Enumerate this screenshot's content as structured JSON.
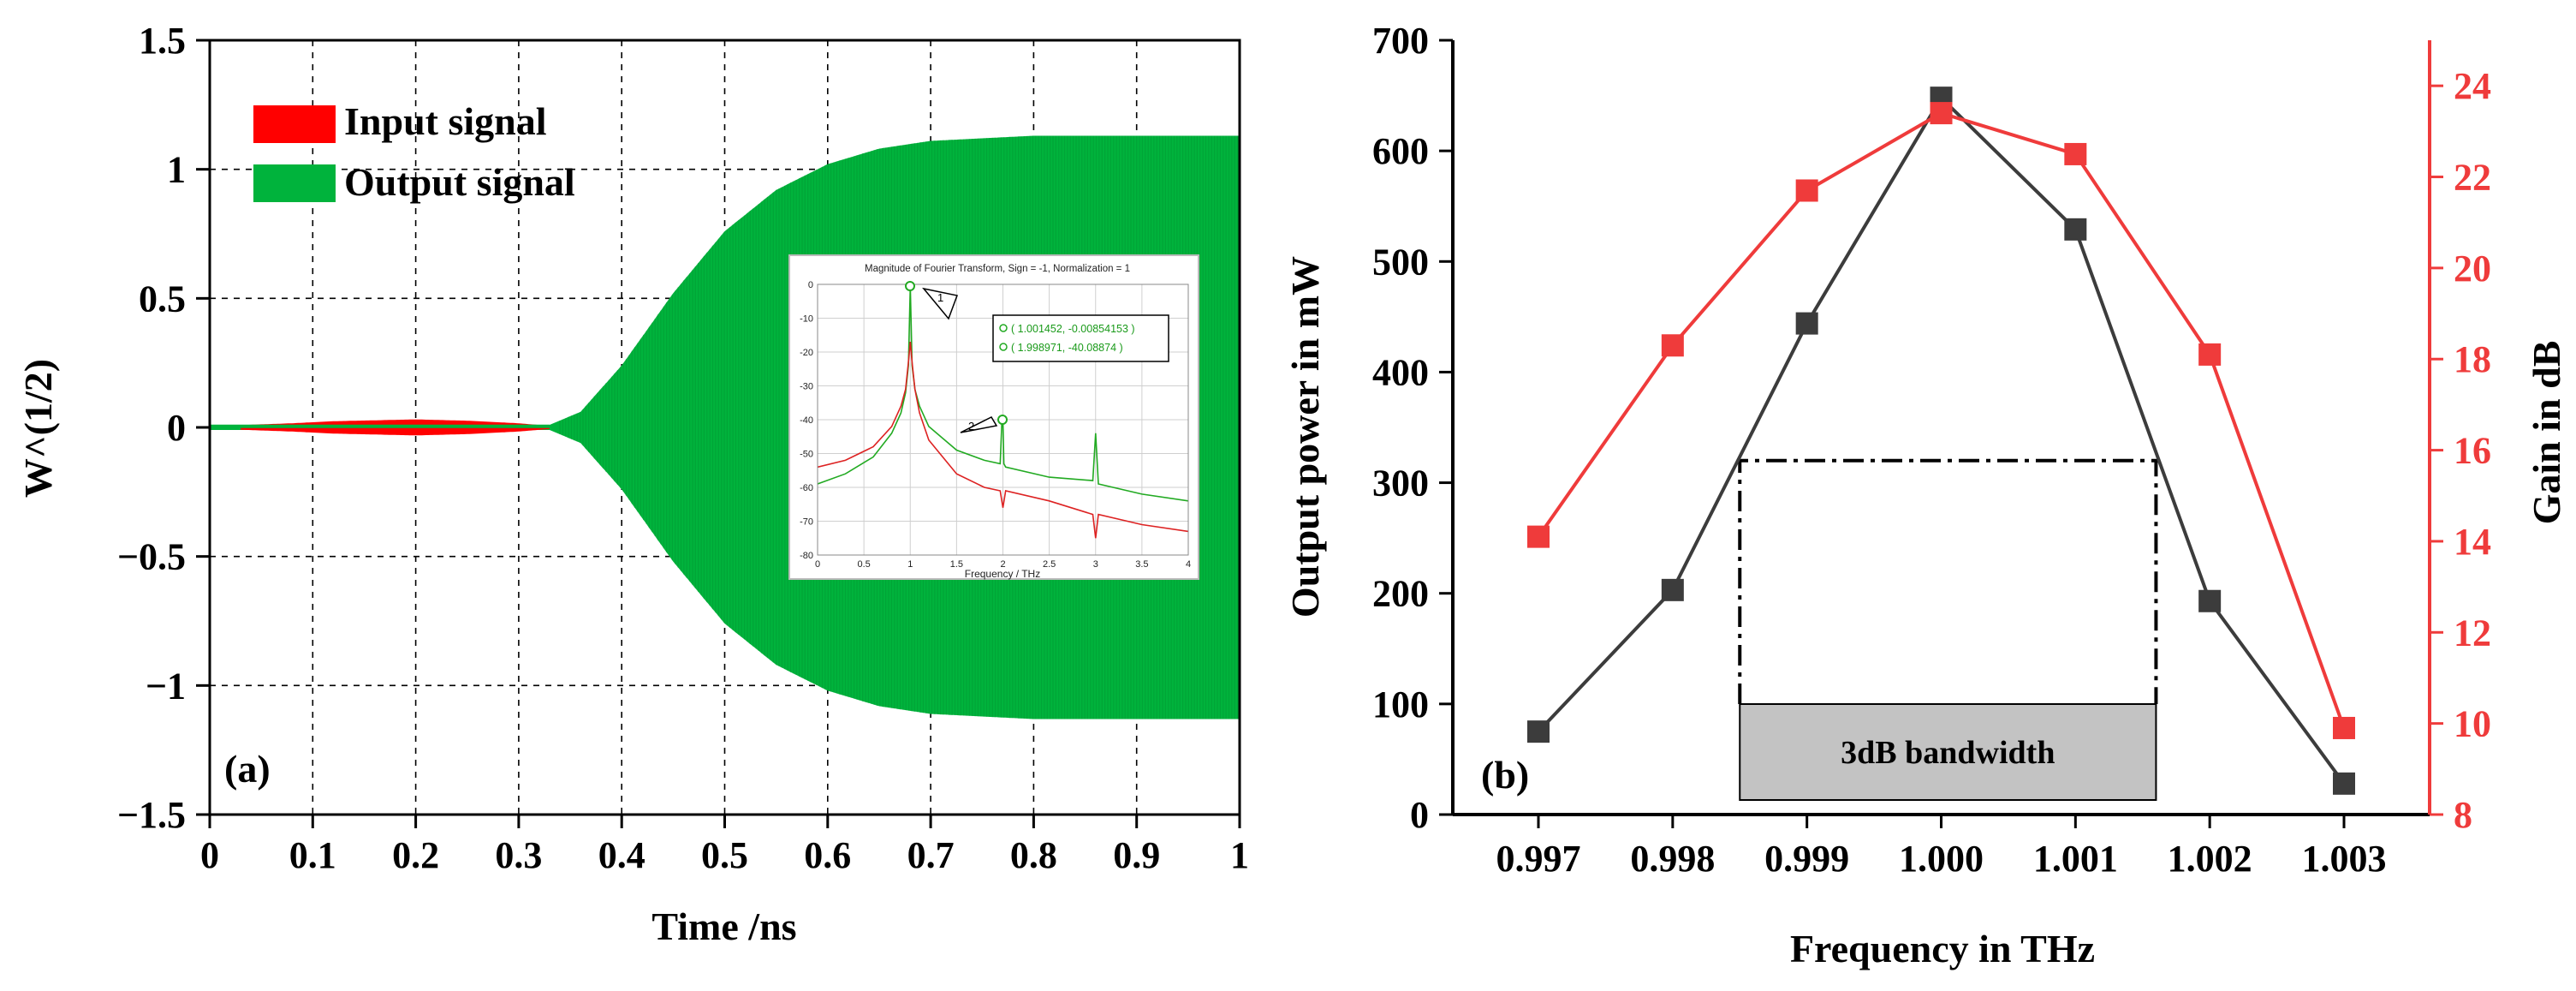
{
  "chart_data": [
    {
      "panel": "(a)",
      "type": "line",
      "title": "",
      "xlabel": "Time /ns",
      "ylabel": "W^(1/2)",
      "xlim": [
        0,
        1
      ],
      "ylim": [
        -1.5,
        1.5
      ],
      "x_ticks": [
        0,
        0.1,
        0.2,
        0.3,
        0.4,
        0.5,
        0.6,
        0.7,
        0.8,
        0.9,
        1
      ],
      "x_tick_labels": [
        "0",
        "0.1",
        "0.2",
        "0.3",
        "0.4",
        "0.5",
        "0.6",
        "0.7",
        "0.8",
        "0.9",
        "1"
      ],
      "y_ticks": [
        -1.5,
        -1,
        -0.5,
        0,
        0.5,
        1,
        1.5
      ],
      "y_tick_labels": [
        "−1.5",
        "−1",
        "−0.5",
        "0",
        "0.5",
        "1",
        "1.5"
      ],
      "grid": true,
      "legend_position": "top-left",
      "series": [
        {
          "name": "Input signal",
          "color": "#ff0000",
          "envelope": {
            "x": [
              0.03,
              0.08,
              0.12,
              0.2,
              0.25,
              0.3,
              0.33
            ],
            "amp": [
              0.003,
              0.01,
              0.018,
              0.025,
              0.02,
              0.01,
              0.0
            ]
          }
        },
        {
          "name": "Output signal",
          "color": "#00b33c",
          "envelope": {
            "x": [
              0,
              0.33,
              0.36,
              0.4,
              0.45,
              0.5,
              0.55,
              0.6,
              0.65,
              0.7,
              0.75,
              0.8,
              0.9,
              1.0
            ],
            "amp": [
              0.01,
              0.01,
              0.06,
              0.24,
              0.52,
              0.76,
              0.92,
              1.02,
              1.08,
              1.11,
              1.12,
              1.13,
              1.13,
              1.13
            ]
          }
        }
      ],
      "inset": {
        "type": "line",
        "title": "Magnitude of Fourier Transform, Sign = -1, Normalization = 1",
        "xlabel": "Frequency / THz",
        "xlim": [
          0,
          4
        ],
        "ylim": [
          -80,
          0
        ],
        "x_tick_labels": [
          "0",
          "0.5",
          "1",
          "1.5",
          "2",
          "2.5",
          "3",
          "3.5",
          "4"
        ],
        "y_tick_labels": [
          "0",
          "-10",
          "-20",
          "-30",
          "-40",
          "-50",
          "-60",
          "-70",
          "-80"
        ],
        "grid": true,
        "markers": [
          "1",
          "2"
        ],
        "annotation_lines": [
          "( 1.001452, -0.00854153 )",
          "( 1.998971, -40.08874 )"
        ],
        "series": [
          {
            "name": "green",
            "color": "#22aa22",
            "x": [
              0,
              0.3,
              0.6,
              0.8,
              0.9,
              0.95,
              0.98,
              1.0,
              1.02,
              1.05,
              1.1,
              1.2,
              1.5,
              1.8,
              1.97,
              1.99,
              2.0,
              2.01,
              2.03,
              2.5,
              2.97,
              3.0,
              3.03,
              3.5,
              4.0
            ],
            "y": [
              -59,
              -56,
              -51,
              -44,
              -38,
              -32,
              -24,
              -0.5,
              -24,
              -31,
              -36,
              -42,
              -49,
              -52,
              -53,
              -40,
              -40,
              -53,
              -54,
              -57,
              -58,
              -44,
              -59,
              -62,
              -64
            ]
          },
          {
            "name": "red",
            "color": "#dd2222",
            "x": [
              0,
              0.3,
              0.6,
              0.8,
              0.9,
              0.95,
              0.98,
              1.0,
              1.02,
              1.05,
              1.1,
              1.2,
              1.5,
              1.8,
              1.97,
              2.0,
              2.03,
              2.5,
              2.97,
              3.0,
              3.03,
              3.5,
              4.0
            ],
            "y": [
              -54,
              -52,
              -48,
              -42,
              -36,
              -31,
              -23,
              -17,
              -23,
              -31,
              -38,
              -46,
              -56,
              -60,
              -61,
              -66,
              -61,
              -64,
              -68,
              -75,
              -68,
              -71,
              -73
            ]
          }
        ]
      }
    },
    {
      "panel": "(b)",
      "type": "line",
      "title": "",
      "xlabel": "Frequency in THz",
      "ylabel": "Output power in mW",
      "y2label": "Gain in dB",
      "categories": [
        "0.997",
        "0.998",
        "0.999",
        "1.000",
        "1.001",
        "1.002",
        "1.003"
      ],
      "ylim": [
        0,
        700
      ],
      "y2lim": [
        8,
        25
      ],
      "y_tick_labels": [
        "0",
        "100",
        "200",
        "300",
        "400",
        "500",
        "600",
        "700"
      ],
      "y2_tick_labels": [
        "8",
        "10",
        "12",
        "14",
        "16",
        "18",
        "20",
        "22",
        "24"
      ],
      "grid": false,
      "series": [
        {
          "name": "Output power",
          "axis": "left",
          "color": "#3c3c3c",
          "marker": "square",
          "values": [
            75,
            203,
            444,
            648,
            529,
            193,
            28
          ]
        },
        {
          "name": "Gain",
          "axis": "right",
          "color": "#ef3b3b",
          "marker": "square",
          "values": [
            14.1,
            18.3,
            21.7,
            23.4,
            22.5,
            18.1,
            9.9
          ]
        }
      ],
      "bandwidth": {
        "label": "3dB bandwidth",
        "x_range": [
          0.9985,
          1.0016
        ],
        "level": 320
      }
    }
  ]
}
